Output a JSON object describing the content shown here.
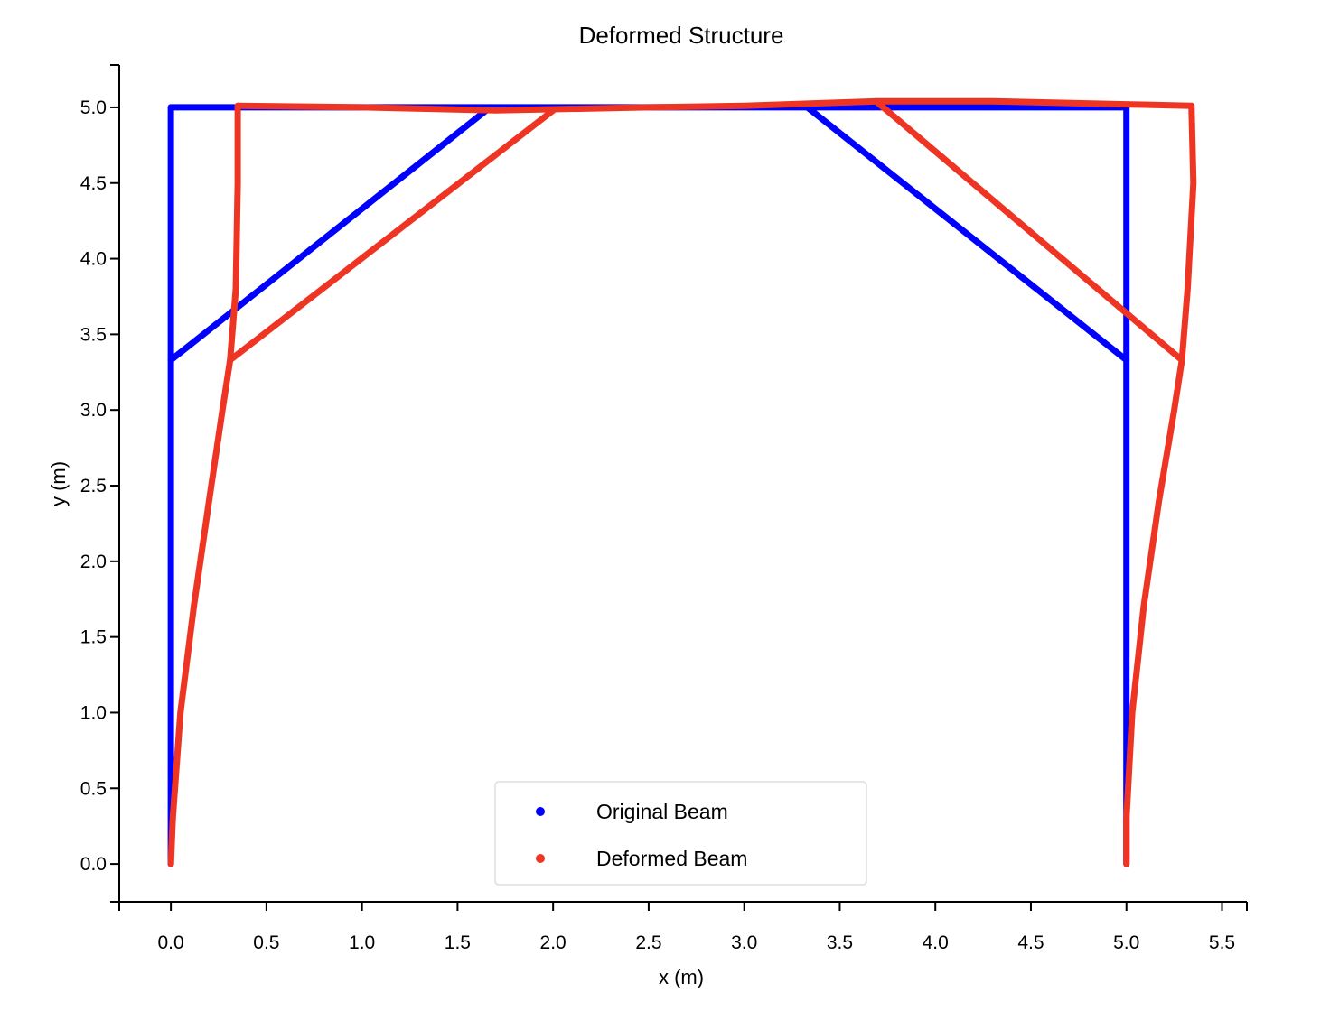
{
  "chart_data": {
    "type": "line",
    "title": "Deformed Structure",
    "xlabel": "x (m)",
    "ylabel": "y (m)",
    "xlim": [
      -0.27,
      5.63
    ],
    "ylim": [
      -0.25,
      5.28
    ],
    "xticks": [
      "0.0",
      "0.5",
      "1.0",
      "1.5",
      "2.0",
      "2.5",
      "3.0",
      "3.5",
      "4.0",
      "4.5",
      "5.0",
      "5.5"
    ],
    "yticks": [
      "0.0",
      "0.5",
      "1.0",
      "1.5",
      "2.0",
      "2.5",
      "3.0",
      "3.5",
      "4.0",
      "4.5",
      "5.0"
    ],
    "grid": false,
    "legend_position": "bottom-center",
    "series": [
      {
        "name": "Original Beam",
        "color": "#0000ff",
        "segments": [
          [
            [
              0,
              0
            ],
            [
              0,
              5
            ]
          ],
          [
            [
              0,
              5
            ],
            [
              5,
              5
            ]
          ],
          [
            [
              5,
              5
            ],
            [
              5,
              0
            ]
          ],
          [
            [
              0,
              3.33
            ],
            [
              1.67,
              5
            ]
          ],
          [
            [
              3.33,
              5
            ],
            [
              5,
              3.33
            ]
          ]
        ]
      },
      {
        "name": "Deformed Beam",
        "color": "#ee3524",
        "segments": [
          [
            [
              0,
              0
            ],
            [
              0.01,
              0.3
            ],
            [
              0.05,
              1.0
            ],
            [
              0.12,
              1.7
            ],
            [
              0.2,
              2.4
            ],
            [
              0.27,
              3.0
            ],
            [
              0.31,
              3.33
            ],
            [
              0.34,
              3.8
            ],
            [
              0.35,
              4.5
            ],
            [
              0.35,
              5.01
            ]
          ],
          [
            [
              0.35,
              5.01
            ],
            [
              1.0,
              5.0
            ],
            [
              1.7,
              4.98
            ],
            [
              2.5,
              5.0
            ],
            [
              3.0,
              5.01
            ],
            [
              3.7,
              5.04
            ],
            [
              4.3,
              5.04
            ],
            [
              5.0,
              5.02
            ],
            [
              5.34,
              5.01
            ]
          ],
          [
            [
              5.34,
              5.01
            ],
            [
              5.35,
              4.5
            ],
            [
              5.32,
              3.8
            ],
            [
              5.29,
              3.33
            ],
            [
              5.25,
              3.0
            ],
            [
              5.17,
              2.4
            ],
            [
              5.09,
              1.7
            ],
            [
              5.03,
              1.0
            ],
            [
              5.0,
              0.3
            ],
            [
              5.0,
              0
            ]
          ],
          [
            [
              0.31,
              3.33
            ],
            [
              2.0,
              4.98
            ]
          ],
          [
            [
              3.69,
              5.04
            ],
            [
              5.29,
              3.33
            ]
          ]
        ]
      }
    ]
  }
}
